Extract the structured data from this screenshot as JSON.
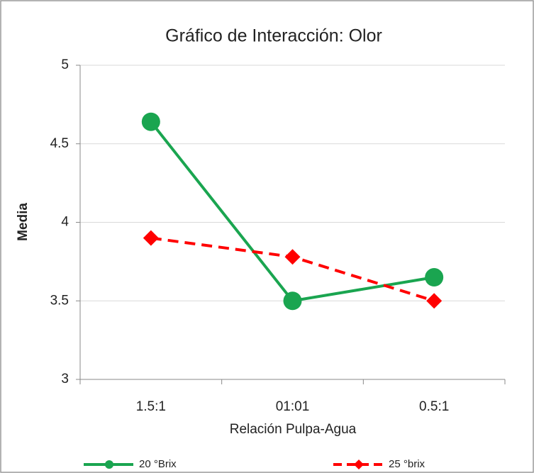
{
  "chart_data": {
    "type": "line",
    "title": "Gráfico de Interacción: Olor",
    "xlabel": "Relación Pulpa-Agua",
    "ylabel": "Media",
    "categories": [
      "1.5:1",
      "01:01",
      "0.5:1"
    ],
    "series": [
      {
        "name": "20 °Brix",
        "color": "#1aa550",
        "marker": "circle",
        "dash": false,
        "values": [
          4.64,
          3.5,
          3.65
        ]
      },
      {
        "name": "25 °brix",
        "color": "#ff0000",
        "marker": "diamond",
        "dash": true,
        "values": [
          3.9,
          3.78,
          3.5
        ]
      }
    ],
    "ylim": [
      3,
      5
    ],
    "yticks": [
      3,
      3.5,
      4,
      4.5,
      5
    ],
    "grid": true,
    "legend": "bottom"
  }
}
